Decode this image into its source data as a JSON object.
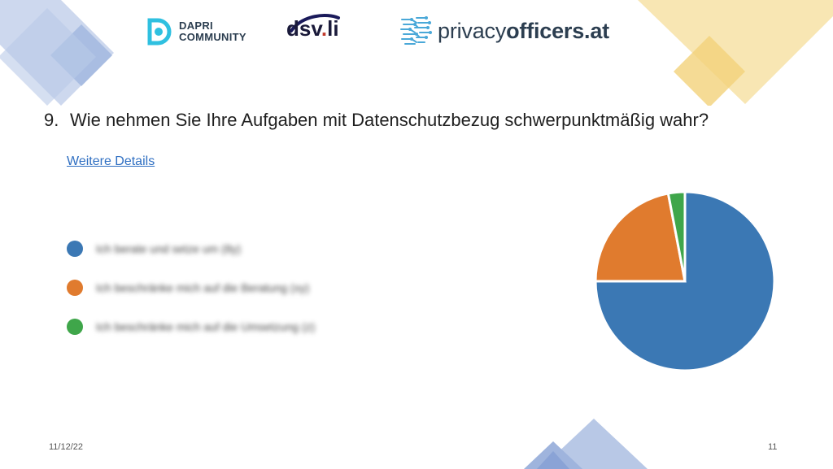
{
  "logos": {
    "dapri_line1": "DAPRI",
    "dapri_line2": "COMMUNITY",
    "dsv_main": "dsv",
    "dsv_suffix": "li",
    "po_light": "privacy",
    "po_bold": "officers.at"
  },
  "question": {
    "number": "9.",
    "text": "Wie nehmen Sie Ihre Aufgaben mit Datenschutzbezug schwerpunktmäßig wahr?"
  },
  "details_link": "Weitere Details",
  "legend": [
    {
      "label": "Ich berate und setze um (8y)",
      "color": "#3b78b4"
    },
    {
      "label": "Ich beschränke mich auf die Beratung (xy)",
      "color": "#e07b2e"
    },
    {
      "label": "Ich beschränke mich auf die Umsetzung (z)",
      "color": "#3fa64a"
    }
  ],
  "chart_data": {
    "type": "pie",
    "slices": [
      {
        "value": 75,
        "color": "#3b78b4"
      },
      {
        "value": 22,
        "color": "#e07b2e"
      },
      {
        "value": 3,
        "color": "#3fa64a"
      }
    ]
  },
  "footer": {
    "date": "11/12/22",
    "page": "11"
  },
  "colors": {
    "deco_blue": "#c5d3ec",
    "deco_blue_dark": "#9fb4dd",
    "deco_yellow": "#f7e2a7",
    "deco_yellow_dark": "#f3d27a"
  }
}
